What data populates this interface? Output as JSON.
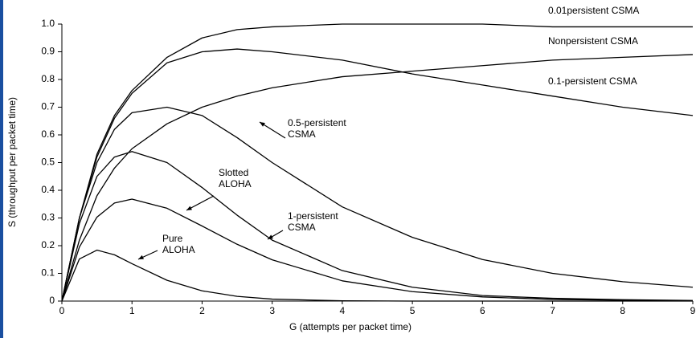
{
  "chart_data": {
    "type": "line",
    "x": [
      0,
      0.25,
      0.5,
      0.75,
      1,
      1.5,
      2,
      2.5,
      3,
      4,
      5,
      6,
      7,
      8,
      9
    ],
    "xlabel": "G (attempts per packet time)",
    "ylabel": "S (throughput per packet time)",
    "xlim": [
      0,
      9
    ],
    "xticks": [
      0,
      1,
      2,
      3,
      4,
      5,
      6,
      7,
      8,
      9
    ],
    "ylim": [
      0,
      1
    ],
    "yticks": [
      0,
      0.1,
      0.2,
      0.3,
      0.4,
      0.5,
      0.6,
      0.7,
      0.8,
      0.9,
      {
        "value": 1,
        "label": "1.0"
      }
    ],
    "series": [
      {
        "name": "0.01persistent CSMA",
        "color": "#000000",
        "values": [
          0,
          0.3,
          0.53,
          0.67,
          0.76,
          0.88,
          0.95,
          0.98,
          0.99,
          1.0,
          1.0,
          1.0,
          0.99,
          0.99,
          0.99
        ]
      },
      {
        "name": "Nonpersistent CSMA",
        "color": "#000000",
        "values": [
          0,
          0.3,
          0.52,
          0.66,
          0.75,
          0.86,
          0.9,
          0.91,
          0.9,
          0.87,
          0.82,
          0.78,
          0.74,
          0.7,
          0.67
        ]
      },
      {
        "name": "0.1-persistent CSMA",
        "color": "#000000",
        "values": [
          0,
          0.22,
          0.38,
          0.48,
          0.55,
          0.64,
          0.7,
          0.74,
          0.77,
          0.81,
          0.83,
          0.85,
          0.87,
          0.88,
          0.89
        ]
      },
      {
        "name": "0.5-persistent CSMA",
        "color": "#000000",
        "values": [
          0,
          0.3,
          0.5,
          0.62,
          0.68,
          0.7,
          0.67,
          0.59,
          0.5,
          0.34,
          0.23,
          0.15,
          0.1,
          0.07,
          0.05
        ]
      },
      {
        "name": "Slotted ALOHA",
        "color": "#000000",
        "values": [
          0,
          0.195,
          0.303,
          0.354,
          0.368,
          0.335,
          0.271,
          0.205,
          0.149,
          0.073,
          0.034,
          0.015,
          0.006,
          0.003,
          0.001
        ]
      },
      {
        "name": "1-persistent CSMA",
        "color": "#000000",
        "values": [
          0,
          0.28,
          0.45,
          0.52,
          0.54,
          0.5,
          0.41,
          0.31,
          0.22,
          0.11,
          0.05,
          0.02,
          0.01,
          0.005,
          0.002
        ]
      },
      {
        "name": "Pure ALOHA",
        "color": "#000000",
        "values": [
          0,
          0.152,
          0.184,
          0.167,
          0.135,
          0.075,
          0.037,
          0.017,
          0.007,
          0.001,
          0,
          0,
          0,
          0,
          0
        ]
      }
    ]
  }
}
